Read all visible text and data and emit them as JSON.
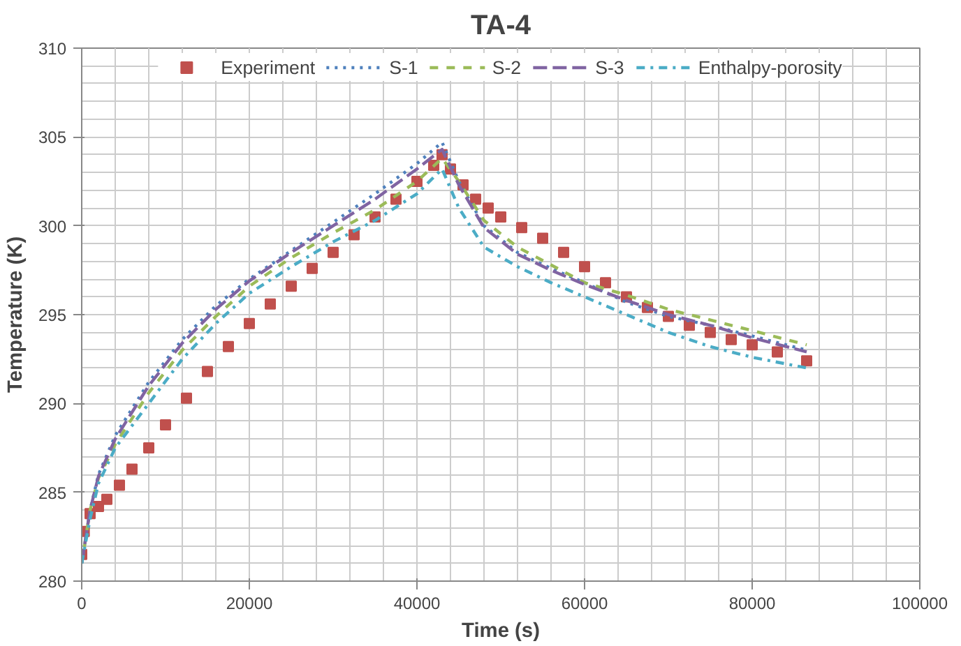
{
  "chart_data": {
    "type": "line",
    "title": "TA-4",
    "xlabel": "Time (s)",
    "ylabel": "Temperature (K)",
    "xlim": [
      0,
      100000
    ],
    "xticks": [
      0,
      20000,
      40000,
      60000,
      80000,
      100000
    ],
    "ylim": [
      280,
      310
    ],
    "yticks": [
      280,
      285,
      290,
      295,
      300,
      305,
      310
    ],
    "grid": true,
    "legend": "top",
    "series": [
      {
        "name": "Experiment",
        "type": "scatter",
        "marker": "square",
        "color": "#c0504d",
        "x": [
          0,
          300,
          1000,
          2000,
          3000,
          4500,
          6000,
          8000,
          10000,
          12500,
          15000,
          17500,
          20000,
          22500,
          25000,
          27500,
          30000,
          32500,
          35000,
          37500,
          40000,
          42000,
          43000,
          44000,
          45500,
          47000,
          48500,
          50000,
          52500,
          55000,
          57500,
          60000,
          62500,
          65000,
          67500,
          70000,
          72500,
          75000,
          77500,
          80000,
          83000,
          86500
        ],
        "values": [
          281.5,
          282.8,
          283.8,
          284.2,
          284.6,
          285.4,
          286.3,
          287.5,
          288.8,
          290.3,
          291.8,
          293.2,
          294.5,
          295.6,
          296.6,
          297.6,
          298.5,
          299.5,
          300.5,
          301.5,
          302.5,
          303.4,
          304.0,
          303.2,
          302.3,
          301.5,
          301.0,
          300.5,
          299.9,
          299.3,
          298.5,
          297.7,
          296.8,
          296.0,
          295.4,
          294.9,
          294.4,
          294.0,
          293.6,
          293.3,
          292.9,
          292.4
        ]
      },
      {
        "name": "S-1",
        "line_style": "dotted",
        "color": "#4f81bd",
        "x": [
          0,
          1000,
          2000,
          4000,
          8000,
          12000,
          16000,
          20000,
          25000,
          30000,
          35000,
          40000,
          43000,
          45000,
          48000,
          52000,
          56000,
          60000,
          65000,
          70000,
          75000,
          80000,
          86500
        ],
        "values": [
          281.0,
          284.0,
          286.0,
          288.2,
          291.2,
          293.6,
          295.5,
          297.0,
          298.6,
          300.2,
          301.8,
          303.5,
          304.7,
          302.5,
          300.0,
          298.5,
          297.6,
          296.8,
          295.7,
          294.9,
          294.4,
          293.8,
          293.0
        ]
      },
      {
        "name": "S-2",
        "line_style": "dashed",
        "color": "#9bbb59",
        "x": [
          0,
          1000,
          2000,
          4000,
          8000,
          12000,
          16000,
          20000,
          25000,
          30000,
          35000,
          40000,
          43000,
          45000,
          48000,
          52000,
          56000,
          60000,
          65000,
          70000,
          75000,
          80000,
          86500
        ],
        "values": [
          281.0,
          284.0,
          285.8,
          287.7,
          290.6,
          293.0,
          294.9,
          296.6,
          298.2,
          299.6,
          300.9,
          302.5,
          303.8,
          302.5,
          300.3,
          298.8,
          297.8,
          296.8,
          296.1,
          295.3,
          294.7,
          294.1,
          293.3
        ]
      },
      {
        "name": "S-3",
        "line_style": "dashed",
        "color": "#8064a2",
        "x": [
          0,
          1000,
          2000,
          4000,
          8000,
          12000,
          16000,
          20000,
          25000,
          30000,
          35000,
          40000,
          43000,
          45000,
          48000,
          52000,
          56000,
          60000,
          65000,
          70000,
          75000,
          80000,
          86500
        ],
        "values": [
          281.0,
          284.0,
          285.9,
          288.0,
          291.0,
          293.4,
          295.3,
          296.9,
          298.5,
          300.0,
          301.5,
          303.2,
          304.3,
          302.3,
          299.9,
          298.4,
          297.5,
          296.7,
          295.8,
          295.0,
          294.4,
          293.7,
          292.9
        ]
      },
      {
        "name": "Enthalpy-porosity",
        "line_style": "dashdot",
        "color": "#4bacc6",
        "x": [
          0,
          1000,
          2000,
          4000,
          8000,
          12000,
          16000,
          20000,
          25000,
          30000,
          35000,
          40000,
          43000,
          45000,
          48000,
          52000,
          56000,
          60000,
          65000,
          70000,
          75000,
          80000,
          86500
        ],
        "values": [
          281.0,
          283.5,
          285.5,
          287.5,
          290.0,
          292.5,
          294.5,
          296.2,
          297.7,
          299.1,
          300.3,
          301.8,
          303.2,
          301.0,
          298.8,
          297.7,
          296.8,
          296.0,
          295.0,
          294.0,
          293.2,
          292.6,
          292.0
        ]
      }
    ]
  }
}
